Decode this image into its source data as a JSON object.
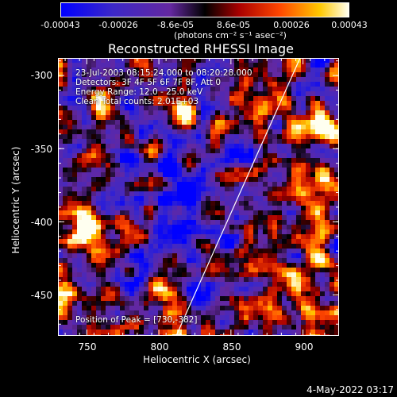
{
  "chart_data": {
    "type": "heatmap",
    "title": "Reconstructed RHESSI Image",
    "xlabel": "Heliocentric X (arcsec)",
    "ylabel": "Heliocentric Y (arcsec)",
    "xlim": [
      730,
      925
    ],
    "ylim": [
      -478,
      -288
    ],
    "x_ticks": [
      "750",
      "800",
      "850",
      "900"
    ],
    "y_ticks": [
      "-300",
      "-350",
      "-400",
      "-450"
    ],
    "colorbar": {
      "ticks": [
        "-0.00043",
        "-0.00026",
        "-8.6e-05",
        "8.6e-05",
        "0.00026",
        "0.00043"
      ],
      "units": "(photons cm⁻² s⁻¹ asec⁻²)",
      "range": [
        -0.00043,
        0.00043
      ]
    },
    "annotations": [
      "23-Jul-2003 08:15:24.000 to 08:20:28.000",
      "Detectors: 3F 4F 5F 6F 7F 8F, Att 0",
      "Energy Range: 12.0 - 25.0 keV",
      "Clean    Total counts: 2.01E+03"
    ],
    "peak_label": "Position of Peak = [730,-382]",
    "peak": [
      730,
      -382
    ],
    "limb_line": [
      [
        812,
        -478
      ],
      [
        898,
        -288
      ]
    ]
  },
  "footer": {
    "date": "4-May-2022 03:17"
  }
}
